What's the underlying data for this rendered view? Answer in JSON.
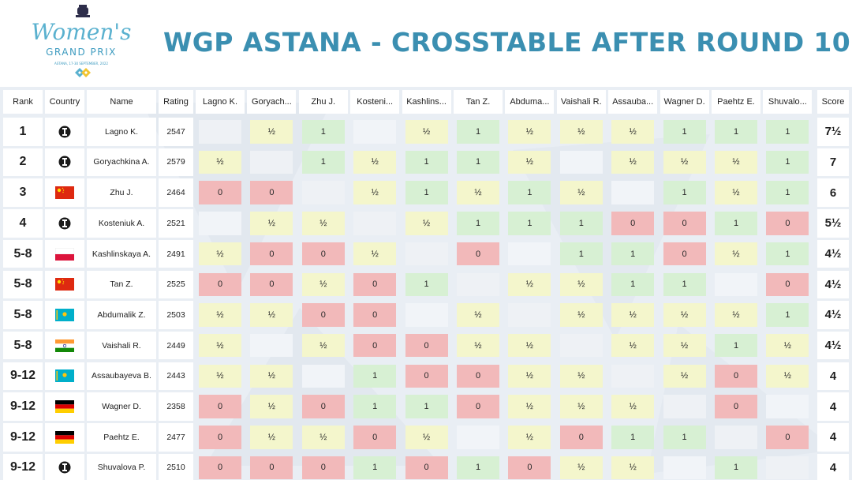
{
  "logo": {
    "line1": "Women's",
    "line2": "GRAND PRIX",
    "line3": "ASTANA, 17-30 SEPTEMBER, 2022"
  },
  "title": "WGP ASTANA - CROSSTABLE AFTER ROUND 10",
  "colors": {
    "title": "#3b8fb1",
    "win": "#d7f0d3",
    "draw": "#f4f6cc",
    "loss": "#f2b9ba"
  },
  "headers": {
    "rank": "Rank",
    "country": "Country",
    "name": "Name",
    "rating": "Rating",
    "score": "Score",
    "opponents": [
      "Lagno K.",
      "Goryach...",
      "Zhu J.",
      "Kosteni...",
      "Kashlins...",
      "Tan Z.",
      "Abduma...",
      "Vaishali R.",
      "Assauba...",
      "Wagner D.",
      "Paehtz E.",
      "Shuvalo..."
    ]
  },
  "players": [
    {
      "rank": "1",
      "flag": "fide-icon",
      "name": "Lagno K.",
      "rating": "2547",
      "score": "7½",
      "results": [
        "",
        "½",
        "1",
        "",
        "½",
        "1",
        "½",
        "½",
        "½",
        "1",
        "1",
        "1"
      ]
    },
    {
      "rank": "2",
      "flag": "fide-icon",
      "name": "Goryachkina A.",
      "rating": "2579",
      "score": "7",
      "results": [
        "½",
        "",
        "1",
        "½",
        "1",
        "1",
        "½",
        "",
        "½",
        "½",
        "½",
        "1"
      ]
    },
    {
      "rank": "3",
      "flag": "china-flag-icon",
      "name": "Zhu J.",
      "rating": "2464",
      "score": "6",
      "results": [
        "0",
        "0",
        "",
        "½",
        "1",
        "½",
        "1",
        "½",
        "",
        "1",
        "½",
        "1"
      ]
    },
    {
      "rank": "4",
      "flag": "fide-icon",
      "name": "Kosteniuk A.",
      "rating": "2521",
      "score": "5½",
      "results": [
        "",
        "½",
        "½",
        "",
        "½",
        "1",
        "1",
        "1",
        "0",
        "0",
        "1",
        "0"
      ]
    },
    {
      "rank": "5-8",
      "flag": "poland-flag-icon",
      "name": "Kashlinskaya A.",
      "rating": "2491",
      "score": "4½",
      "results": [
        "½",
        "0",
        "0",
        "½",
        "",
        "0",
        "",
        "1",
        "1",
        "0",
        "½",
        "1"
      ]
    },
    {
      "rank": "5-8",
      "flag": "china-flag-icon",
      "name": "Tan Z.",
      "rating": "2525",
      "score": "4½",
      "results": [
        "0",
        "0",
        "½",
        "0",
        "1",
        "",
        "½",
        "½",
        "1",
        "1",
        "",
        "0"
      ]
    },
    {
      "rank": "5-8",
      "flag": "kazakhstan-flag-icon",
      "name": "Abdumalik Z.",
      "rating": "2503",
      "score": "4½",
      "results": [
        "½",
        "½",
        "0",
        "0",
        "",
        "½",
        "",
        "½",
        "½",
        "½",
        "½",
        "1"
      ]
    },
    {
      "rank": "5-8",
      "flag": "india-flag-icon",
      "name": "Vaishali R.",
      "rating": "2449",
      "score": "4½",
      "results": [
        "½",
        "",
        "½",
        "0",
        "0",
        "½",
        "½",
        "",
        "½",
        "½",
        "1",
        "½"
      ]
    },
    {
      "rank": "9-12",
      "flag": "kazakhstan-flag-icon",
      "name": "Assaubayeva B.",
      "rating": "2443",
      "score": "4",
      "results": [
        "½",
        "½",
        "",
        "1",
        "0",
        "0",
        "½",
        "½",
        "",
        "½",
        "0",
        "½"
      ]
    },
    {
      "rank": "9-12",
      "flag": "germany-flag-icon",
      "name": "Wagner D.",
      "rating": "2358",
      "score": "4",
      "results": [
        "0",
        "½",
        "0",
        "1",
        "1",
        "0",
        "½",
        "½",
        "½",
        "",
        "0",
        ""
      ]
    },
    {
      "rank": "9-12",
      "flag": "germany-flag-icon",
      "name": "Paehtz E.",
      "rating": "2477",
      "score": "4",
      "results": [
        "0",
        "½",
        "½",
        "0",
        "½",
        "",
        "½",
        "0",
        "1",
        "1",
        "",
        "0"
      ]
    },
    {
      "rank": "9-12",
      "flag": "fide-icon",
      "name": "Shuvalova P.",
      "rating": "2510",
      "score": "4",
      "results": [
        "0",
        "0",
        "0",
        "1",
        "0",
        "1",
        "0",
        "½",
        "½",
        "",
        "1",
        ""
      ]
    }
  ]
}
